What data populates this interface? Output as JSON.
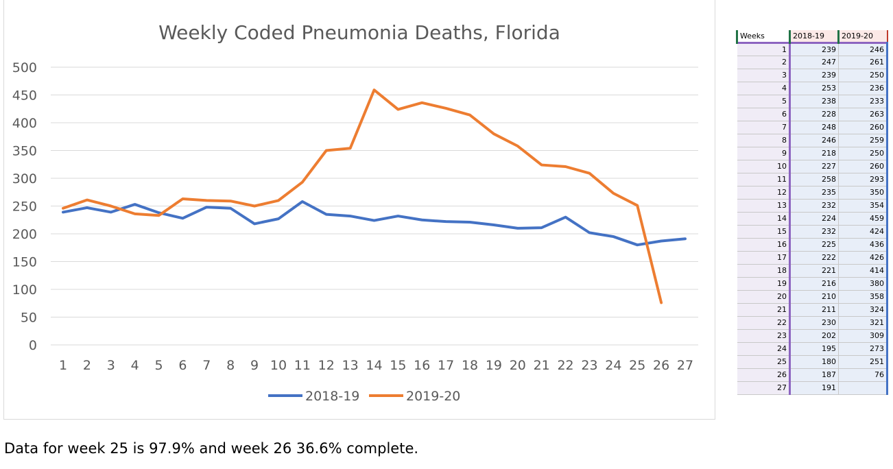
{
  "chart_data": {
    "type": "line",
    "title": "Weekly Coded Pneumonia Deaths, Florida",
    "xlabel": "",
    "ylabel": "",
    "categories": [
      1,
      2,
      3,
      4,
      5,
      6,
      7,
      8,
      9,
      10,
      11,
      12,
      13,
      14,
      15,
      16,
      17,
      18,
      19,
      20,
      21,
      22,
      23,
      24,
      25,
      26,
      27
    ],
    "ylim": [
      0,
      500
    ],
    "yticks": [
      0,
      50,
      100,
      150,
      200,
      250,
      300,
      350,
      400,
      450,
      500
    ],
    "grid": true,
    "legend_position": "bottom",
    "series": [
      {
        "name": "2018-19",
        "color": "#4472c4",
        "values": [
          239,
          247,
          239,
          253,
          238,
          228,
          248,
          246,
          218,
          227,
          258,
          235,
          232,
          224,
          232,
          225,
          222,
          221,
          216,
          210,
          211,
          230,
          202,
          195,
          180,
          187,
          191
        ]
      },
      {
        "name": "2019-20",
        "color": "#ed7d31",
        "values": [
          246,
          261,
          250,
          236,
          233,
          263,
          260,
          259,
          250,
          260,
          293,
          350,
          354,
          459,
          424,
          436,
          426,
          414,
          380,
          358,
          324,
          321,
          309,
          273,
          251,
          76,
          null
        ]
      }
    ]
  },
  "table": {
    "headers": [
      "Weeks",
      "2018-19",
      "2019-20"
    ]
  },
  "footnote": "Data for week 25 is 97.9% and week 26 36.6% complete."
}
